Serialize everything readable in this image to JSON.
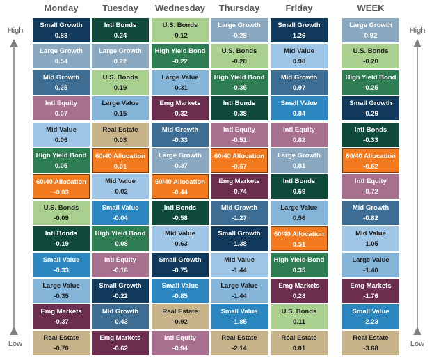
{
  "axis": {
    "high": "High",
    "low": "Low"
  },
  "palette": {
    "Small Growth": "#10395c",
    "Large Growth": "#8aa8c0",
    "Mid Growth": "#3d6d92",
    "Intl Equity": "#a8708f",
    "Mid Value": "#9fc6e6",
    "High Yield Bond": "#2f7d52",
    "60/40 Allocation": "#f47a20",
    "U.S. Bonds": "#a9d08e",
    "Intl Bonds": "#0f4a3b",
    "Small Value": "#2c86c0",
    "Large Value": "#84b4d8",
    "Emg Markets": "#6c2e4f",
    "Real Estate": "#c8b48b"
  },
  "dark_text": [
    "Mid Value",
    "U.S. Bonds",
    "Large Value",
    "Real Estate"
  ],
  "columns": [
    {
      "header": "Monday",
      "cells": [
        {
          "label": "Small Growth",
          "value": "0.83"
        },
        {
          "label": "Large Growth",
          "value": "0.54"
        },
        {
          "label": "Mid Growth",
          "value": "0.25"
        },
        {
          "label": "Intl Equity",
          "value": "0.07"
        },
        {
          "label": "Mid Value",
          "value": "0.06"
        },
        {
          "label": "High Yield Bond",
          "value": "0.05"
        },
        {
          "label": "60/40 Allocation",
          "value": "-0.03"
        },
        {
          "label": "U.S. Bonds",
          "value": "-0.09"
        },
        {
          "label": "Intl Bonds",
          "value": "-0.19"
        },
        {
          "label": "Small Value",
          "value": "-0.33"
        },
        {
          "label": "Large Value",
          "value": "-0.35"
        },
        {
          "label": "Emg Markets",
          "value": "-0.37"
        },
        {
          "label": "Real Estate",
          "value": "-0.70"
        }
      ]
    },
    {
      "header": "Tuesday",
      "cells": [
        {
          "label": "Intl Bonds",
          "value": "0.24"
        },
        {
          "label": "Large Growth",
          "value": "0.22"
        },
        {
          "label": "U.S. Bonds",
          "value": "0.19"
        },
        {
          "label": "Large Value",
          "value": "0.15"
        },
        {
          "label": "Real Estate",
          "value": "0.03"
        },
        {
          "label": "60/40 Allocation",
          "value": "0.01"
        },
        {
          "label": "Mid Value",
          "value": "-0.02"
        },
        {
          "label": "Small Value",
          "value": "-0.04"
        },
        {
          "label": "High Yield Bond",
          "value": "-0.08"
        },
        {
          "label": "Intl Equity",
          "value": "-0.16"
        },
        {
          "label": "Small Growth",
          "value": "-0.22"
        },
        {
          "label": "Mid Growth",
          "value": "-0.43"
        },
        {
          "label": "Emg Markets",
          "value": "-0.62"
        }
      ]
    },
    {
      "header": "Wednesday",
      "cells": [
        {
          "label": "U.S. Bonds",
          "value": "-0.12"
        },
        {
          "label": "High Yield Bond",
          "value": "-0.22"
        },
        {
          "label": "Large Value",
          "value": "-0.31"
        },
        {
          "label": "Emg Markets",
          "value": "-0.32"
        },
        {
          "label": "Mid Growth",
          "value": "-0.33"
        },
        {
          "label": "Large Growth",
          "value": "-0.37"
        },
        {
          "label": "60/40 Allocation",
          "value": "-0.44"
        },
        {
          "label": "Intl Bonds",
          "value": "-0.58"
        },
        {
          "label": "Mid Value",
          "value": "-0.63"
        },
        {
          "label": "Small Growth",
          "value": "-0.75"
        },
        {
          "label": "Small Value",
          "value": "-0.85"
        },
        {
          "label": "Real Estate",
          "value": "-0.92"
        },
        {
          "label": "Intl Equity",
          "value": "-0.94"
        }
      ]
    },
    {
      "header": "Thursday",
      "cells": [
        {
          "label": "Large Growth",
          "value": "-0.28"
        },
        {
          "label": "U.S. Bonds",
          "value": "-0.28"
        },
        {
          "label": "High Yield Bond",
          "value": "-0.35"
        },
        {
          "label": "Intl Bonds",
          "value": "-0.38"
        },
        {
          "label": "Intl Equity",
          "value": "-0.51"
        },
        {
          "label": "60/40 Allocation",
          "value": "-0.67"
        },
        {
          "label": "Emg Markets",
          "value": "-0.74"
        },
        {
          "label": "Mid Growth",
          "value": "-1.27"
        },
        {
          "label": "Small Growth",
          "value": "-1.38"
        },
        {
          "label": "Mid Value",
          "value": "-1.44"
        },
        {
          "label": "Large Value",
          "value": "-1.44"
        },
        {
          "label": "Small Value",
          "value": "-1.85"
        },
        {
          "label": "Real Estate",
          "value": "-2.14"
        }
      ]
    },
    {
      "header": "Friday",
      "cells": [
        {
          "label": "Small Growth",
          "value": "1.26"
        },
        {
          "label": "Mid Value",
          "value": "0.98"
        },
        {
          "label": "Mid Growth",
          "value": "0.97"
        },
        {
          "label": "Small Value",
          "value": "0.84"
        },
        {
          "label": "Intl Equity",
          "value": "0.82"
        },
        {
          "label": "Large Growth",
          "value": "0.81"
        },
        {
          "label": "Intl Bonds",
          "value": "0.59"
        },
        {
          "label": "Large Value",
          "value": "0.56"
        },
        {
          "label": "60/40 Allocation",
          "value": "0.51"
        },
        {
          "label": "High Yield Bond",
          "value": "0.35"
        },
        {
          "label": "Emg Markets",
          "value": "0.28"
        },
        {
          "label": "U.S. Bonds",
          "value": "0.11"
        },
        {
          "label": "Real Estate",
          "value": "0.01"
        }
      ]
    },
    {
      "header": "WEEK",
      "cells": [
        {
          "label": "Large Growth",
          "value": "0.92"
        },
        {
          "label": "U.S. Bonds",
          "value": "-0.20"
        },
        {
          "label": "High Yield Bond",
          "value": "-0.25"
        },
        {
          "label": "Small Growth",
          "value": "-0.29"
        },
        {
          "label": "Intl Bonds",
          "value": "-0.33"
        },
        {
          "label": "60/40 Allocation",
          "value": "-0.62"
        },
        {
          "label": "Intl Equity",
          "value": "-0.72"
        },
        {
          "label": "Mid Growth",
          "value": "-0.82"
        },
        {
          "label": "Mid Value",
          "value": "-1.05"
        },
        {
          "label": "Large Value",
          "value": "-1.40"
        },
        {
          "label": "Emg Markets",
          "value": "-1.76"
        },
        {
          "label": "Small Value",
          "value": "-2.23"
        },
        {
          "label": "Real Estate",
          "value": "-3.68"
        }
      ]
    }
  ]
}
